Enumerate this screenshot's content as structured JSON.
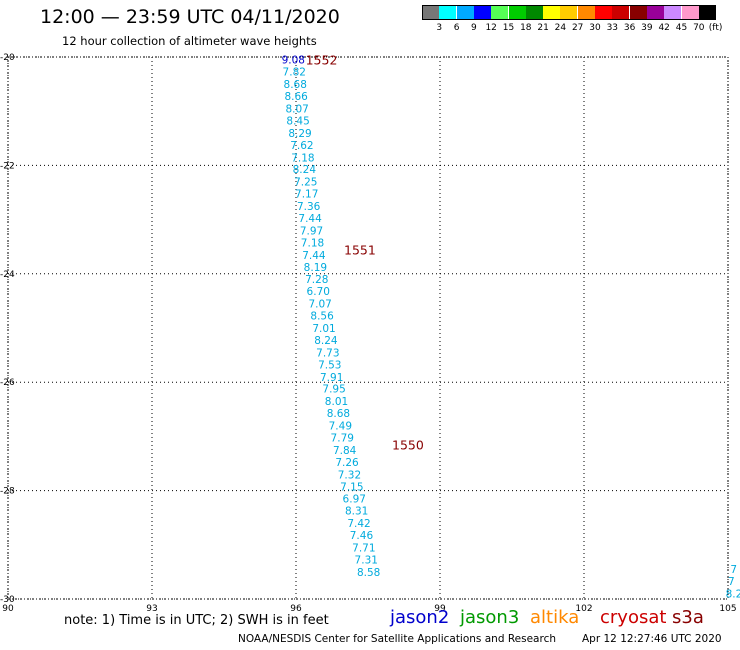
{
  "title": "12:00 — 23:59 UTC 04/11/2020",
  "subtitle": "12 hour collection of altimeter wave heights",
  "legend": {
    "labels": [
      "3",
      "6",
      "9",
      "12",
      "15",
      "18",
      "21",
      "24",
      "27",
      "30",
      "33",
      "36",
      "39",
      "42",
      "45",
      "70"
    ],
    "unit": "(ft)",
    "colors": [
      "#777777",
      "#00ffff",
      "#00aaff",
      "#0000ff",
      "#55ff55",
      "#00cc00",
      "#008800",
      "#ffff00",
      "#ffcc00",
      "#ff8800",
      "#ff0000",
      "#cc0000",
      "#880000",
      "#990099",
      "#cc88ff",
      "#ff99cc",
      "#000000"
    ]
  },
  "axes": {
    "x_ticks": [
      "90",
      "93",
      "96",
      "99",
      "102",
      "105"
    ],
    "y_ticks": [
      "-20",
      "-22",
      "-24",
      "-26",
      "-28",
      "-30"
    ]
  },
  "chart_data": {
    "type": "scatter",
    "x_range": [
      90,
      105
    ],
    "y_range": [
      -30,
      -20
    ],
    "track_labels": [
      {
        "text": "1552",
        "lon": 96.2,
        "lat": -20.05,
        "color": "#880000"
      },
      {
        "text": "1551",
        "lon": 97.0,
        "lat": -23.55,
        "color": "#880000"
      },
      {
        "text": "1550",
        "lon": 98.0,
        "lat": -27.15,
        "color": "#880000"
      }
    ],
    "points": [
      {
        "v": "9.08",
        "lon": 95.7,
        "lat": -20.05,
        "color": "#0000cc"
      },
      {
        "v": "7.82",
        "lon": 95.72,
        "lat": -20.27,
        "color": "#00aadd"
      },
      {
        "v": "8.68",
        "lon": 95.74,
        "lat": -20.5,
        "color": "#00aadd"
      },
      {
        "v": "8.66",
        "lon": 95.76,
        "lat": -20.72,
        "color": "#00aadd"
      },
      {
        "v": "8.07",
        "lon": 95.78,
        "lat": -20.95,
        "color": "#00aadd"
      },
      {
        "v": "8.45",
        "lon": 95.8,
        "lat": -21.17,
        "color": "#00aadd"
      },
      {
        "v": "8.29",
        "lon": 95.84,
        "lat": -21.4,
        "color": "#00aadd"
      },
      {
        "v": "7.62",
        "lon": 95.88,
        "lat": -21.62,
        "color": "#00aadd"
      },
      {
        "v": "7.18",
        "lon": 95.9,
        "lat": -21.85,
        "color": "#00aadd"
      },
      {
        "v": "8.24",
        "lon": 95.93,
        "lat": -22.07,
        "color": "#00aadd"
      },
      {
        "v": "7.25",
        "lon": 95.96,
        "lat": -22.3,
        "color": "#00aadd"
      },
      {
        "v": "7.17",
        "lon": 95.98,
        "lat": -22.52,
        "color": "#00aadd"
      },
      {
        "v": "7.36",
        "lon": 96.02,
        "lat": -22.75,
        "color": "#00aadd"
      },
      {
        "v": "7.44",
        "lon": 96.05,
        "lat": -22.97,
        "color": "#00aadd"
      },
      {
        "v": "7.97",
        "lon": 96.08,
        "lat": -23.2,
        "color": "#00aadd"
      },
      {
        "v": "7.18",
        "lon": 96.1,
        "lat": -23.42,
        "color": "#00aadd"
      },
      {
        "v": "7.44",
        "lon": 96.13,
        "lat": -23.65,
        "color": "#00aadd"
      },
      {
        "v": "8.19",
        "lon": 96.16,
        "lat": -23.87,
        "color": "#00aadd"
      },
      {
        "v": "7.28",
        "lon": 96.19,
        "lat": -24.1,
        "color": "#00aadd"
      },
      {
        "v": "6.70",
        "lon": 96.22,
        "lat": -24.32,
        "color": "#00aadd"
      },
      {
        "v": "7.07",
        "lon": 96.26,
        "lat": -24.55,
        "color": "#00aadd"
      },
      {
        "v": "8.56",
        "lon": 96.3,
        "lat": -24.77,
        "color": "#00aadd"
      },
      {
        "v": "7.01",
        "lon": 96.34,
        "lat": -25.0,
        "color": "#00aadd"
      },
      {
        "v": "8.24",
        "lon": 96.38,
        "lat": -25.22,
        "color": "#00aadd"
      },
      {
        "v": "7.73",
        "lon": 96.42,
        "lat": -25.45,
        "color": "#00aadd"
      },
      {
        "v": "7.53",
        "lon": 96.46,
        "lat": -25.67,
        "color": "#00aadd"
      },
      {
        "v": "7.91",
        "lon": 96.5,
        "lat": -25.9,
        "color": "#00aadd"
      },
      {
        "v": "7.95",
        "lon": 96.55,
        "lat": -26.12,
        "color": "#00aadd"
      },
      {
        "v": "8.01",
        "lon": 96.6,
        "lat": -26.35,
        "color": "#00aadd"
      },
      {
        "v": "8.68",
        "lon": 96.64,
        "lat": -26.57,
        "color": "#00aadd"
      },
      {
        "v": "7.49",
        "lon": 96.68,
        "lat": -26.8,
        "color": "#00aadd"
      },
      {
        "v": "7.79",
        "lon": 96.72,
        "lat": -27.02,
        "color": "#00aadd"
      },
      {
        "v": "7.84",
        "lon": 96.77,
        "lat": -27.25,
        "color": "#00aadd"
      },
      {
        "v": "7.26",
        "lon": 96.82,
        "lat": -27.47,
        "color": "#00aadd"
      },
      {
        "v": "7.32",
        "lon": 96.87,
        "lat": -27.7,
        "color": "#00aadd"
      },
      {
        "v": "7.15",
        "lon": 96.92,
        "lat": -27.92,
        "color": "#00aadd"
      },
      {
        "v": "6.97",
        "lon": 96.97,
        "lat": -28.15,
        "color": "#00aadd"
      },
      {
        "v": "8.31",
        "lon": 97.02,
        "lat": -28.37,
        "color": "#00aadd"
      },
      {
        "v": "7.42",
        "lon": 97.07,
        "lat": -28.6,
        "color": "#00aadd"
      },
      {
        "v": "7.46",
        "lon": 97.12,
        "lat": -28.82,
        "color": "#00aadd"
      },
      {
        "v": "7.71",
        "lon": 97.17,
        "lat": -29.05,
        "color": "#00aadd"
      },
      {
        "v": "7.31",
        "lon": 97.22,
        "lat": -29.27,
        "color": "#00aadd"
      },
      {
        "v": "8.58",
        "lon": 97.27,
        "lat": -29.5,
        "color": "#00aadd"
      },
      {
        "v": "7",
        "lon": 105.05,
        "lat": -29.45,
        "color": "#00aadd"
      },
      {
        "v": "7",
        "lon": 105.0,
        "lat": -29.67,
        "color": "#00aadd"
      },
      {
        "v": "8.2",
        "lon": 104.95,
        "lat": -29.9,
        "color": "#00aadd"
      }
    ]
  },
  "note": "note: 1) Time is in UTC; 2) SWH is in feet",
  "satellites": [
    {
      "name": "jason2",
      "color": "#0000cc"
    },
    {
      "name": "jason3",
      "color": "#009900"
    },
    {
      "name": "altika",
      "color": "#ff8800"
    },
    {
      "name": "cryosat",
      "color": "#cc0000"
    },
    {
      "name": "s3a",
      "color": "#880000"
    }
  ],
  "credit": "NOAA/NESDIS Center for Satellite Applications and Research",
  "timestamp": "Apr 12 12:27:46 UTC 2020"
}
